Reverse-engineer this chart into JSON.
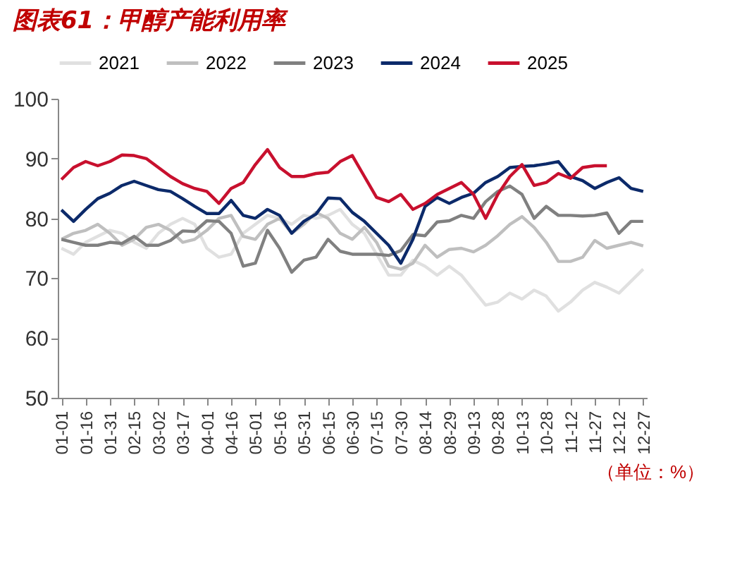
{
  "chart_data": {
    "type": "line",
    "title": "图表61：甲醇产能利用率",
    "annotations": [
      "（单位：%）"
    ],
    "categories": [
      "01-01",
      null,
      "01-16",
      null,
      "01-31",
      null,
      "02-15",
      null,
      "03-02",
      null,
      "03-17",
      null,
      "04-01",
      null,
      "04-16",
      null,
      "05-01",
      null,
      "05-16",
      null,
      "05-31",
      null,
      "06-15",
      null,
      "06-30",
      null,
      "07-15",
      null,
      "07-30",
      null,
      "08-14",
      null,
      "08-29",
      null,
      "09-13",
      null,
      "09-28",
      null,
      "10-13",
      null,
      "10-28",
      null,
      "11-12",
      null,
      "11-27",
      null,
      "12-12",
      null,
      "12-27"
    ],
    "series": [
      {
        "name": "2021",
        "color": "#e0e0e0",
        "values": [
          75,
          74,
          76,
          77,
          78,
          77.5,
          76,
          75,
          77.5,
          79,
          80,
          79,
          75,
          73.5,
          74,
          77.5,
          79,
          80.5,
          80,
          79,
          80.5,
          80,
          80.5,
          81.5,
          79,
          77.5,
          74,
          70.5,
          70.5,
          73,
          72,
          70.5,
          72,
          70.5,
          68,
          65.5,
          66,
          67.5,
          66.5,
          68,
          67,
          64.5,
          66,
          68,
          69.3,
          68.5,
          67.5,
          69.5,
          71.5
        ]
      },
      {
        "name": "2022",
        "color": "#bfbfbf",
        "values": [
          76.5,
          77.5,
          78,
          79,
          77.5,
          75.5,
          76.5,
          78.5,
          79,
          78,
          76,
          76.5,
          78,
          80,
          80.5,
          77,
          76.5,
          79,
          80,
          77.5,
          79,
          81,
          80,
          77.5,
          76.5,
          78.5,
          76,
          72,
          71.5,
          72.5,
          75.5,
          73.5,
          74.8,
          75,
          74.4,
          75.5,
          77.1,
          79,
          80.3,
          78.5,
          76,
          72.8,
          72.8,
          73.5,
          76.3,
          75,
          75.5,
          76,
          75.4
        ]
      },
      {
        "name": "2023",
        "color": "#808080",
        "values": [
          76.5,
          76,
          75.5,
          75.5,
          76,
          75.8,
          77,
          75.5,
          75.5,
          76.3,
          77.9,
          77.8,
          79.6,
          79.5,
          77.5,
          72,
          72.5,
          78,
          75,
          71,
          73,
          73.5,
          76.5,
          74.5,
          74,
          74,
          74,
          73.8,
          74.6,
          77.3,
          77.1,
          79.4,
          79.6,
          80.5,
          80,
          82.8,
          84.5,
          85.4,
          84,
          80,
          82,
          80.5,
          80.5,
          80.4,
          80.5,
          80.9,
          77.5,
          79.5,
          79.5
        ]
      },
      {
        "name": "2024",
        "color": "#0c2a6a",
        "values": [
          81.4,
          79.5,
          81.5,
          83.3,
          84.2,
          85.5,
          86.2,
          85.5,
          84.8,
          84.5,
          83.3,
          82,
          80.8,
          80.8,
          83,
          80.5,
          80,
          81.5,
          80.5,
          77.5,
          79.5,
          80.7,
          83.4,
          83.3,
          81,
          79.5,
          77.5,
          75.5,
          72.5,
          76.5,
          82,
          83.5,
          82.5,
          83.5,
          84.2,
          86,
          87,
          88.5,
          88.7,
          88.8,
          89.1,
          89.5,
          87,
          86.3,
          85,
          86,
          86.8,
          85,
          84.5
        ]
      },
      {
        "name": "2025",
        "color": "#c8102e",
        "values": [
          86.5,
          88.5,
          89.5,
          88.8,
          89.5,
          90.6,
          90.5,
          90,
          88.5,
          87,
          85.8,
          85,
          84.5,
          82.5,
          85,
          86,
          89,
          91.5,
          88.5,
          87,
          87,
          87.5,
          87.7,
          89.5,
          90.5,
          87,
          83.5,
          82.8,
          84,
          81.5,
          82.5,
          84,
          85,
          86,
          84,
          80,
          84,
          87,
          89,
          85.5,
          86,
          87.5,
          86.7,
          88.5,
          88.8,
          88.8,
          null,
          null,
          null
        ]
      }
    ],
    "ylim": [
      50,
      100
    ],
    "yticks": [
      50,
      60,
      70,
      80,
      90,
      100
    ],
    "legend": "top"
  }
}
